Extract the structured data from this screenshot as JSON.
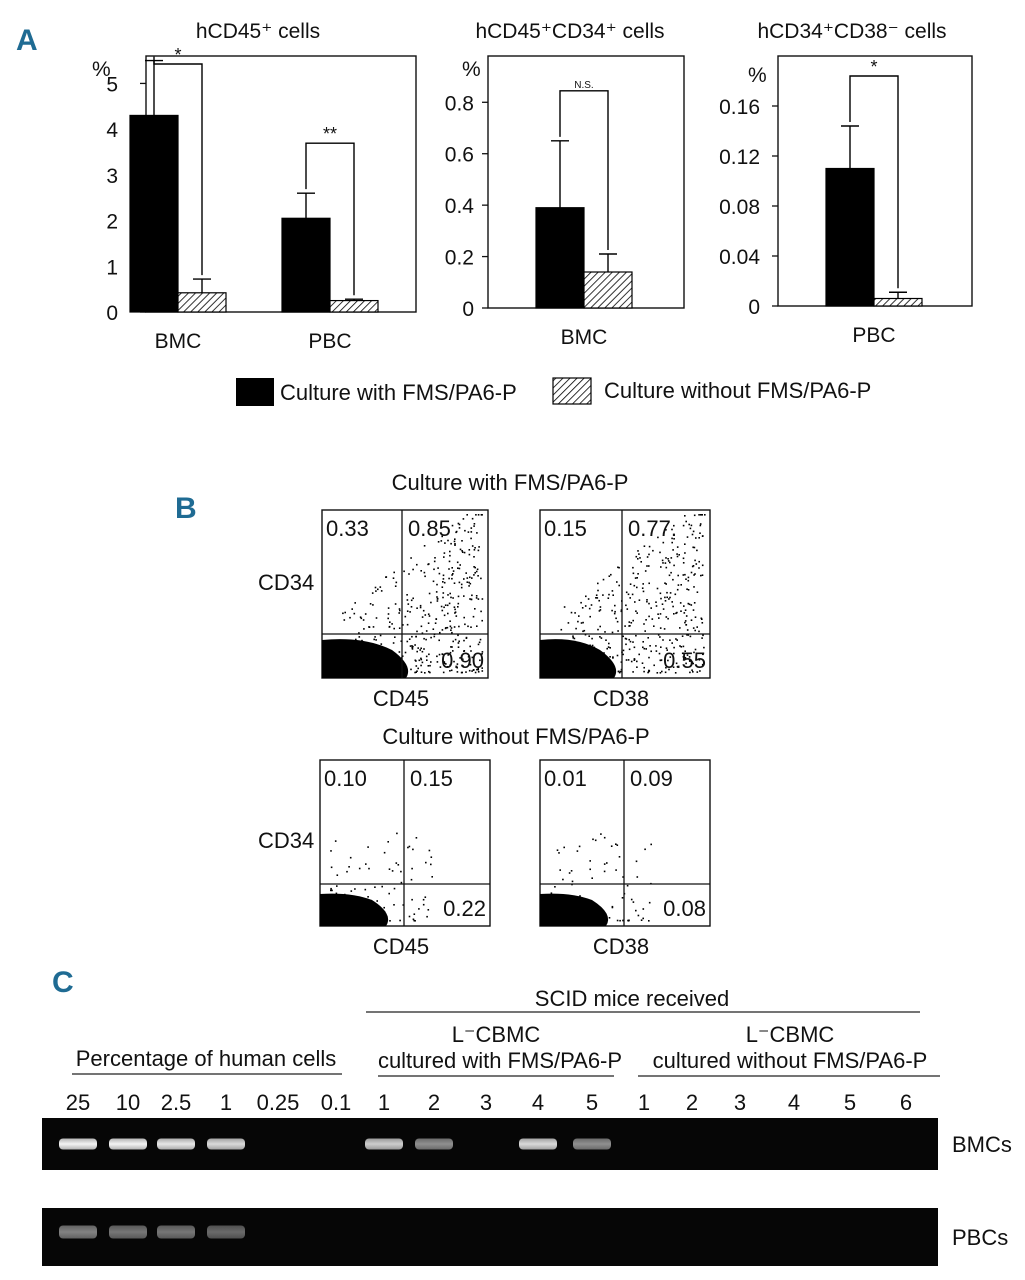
{
  "figure": {
    "panel_letters": [
      "A",
      "B",
      "C"
    ],
    "colors": {
      "panel_letter": "#1f6b93",
      "with_bar": "#000000",
      "without_bar_hatch": "#000000",
      "gel_background": "#050505",
      "band": "#f2f2f2"
    }
  },
  "legend": {
    "with_label": "Culture with FMS/PA6-P",
    "without_label": "Culture without FMS/PA6-P"
  },
  "chart_data": [
    {
      "type": "bar",
      "title": "hCD45⁺ cells",
      "ylabel": "%",
      "ylim": [
        0,
        5.6
      ],
      "yticks": [
        0,
        1,
        2,
        3,
        4,
        5
      ],
      "ytick_labels": [
        "0",
        "1",
        "2",
        "3",
        "4",
        "5"
      ],
      "categories": [
        "BMC",
        "PBC"
      ],
      "series": [
        {
          "name": "Culture with FMS/PA6-P",
          "values": [
            4.3,
            2.05
          ],
          "errors": [
            1.2,
            0.55
          ]
        },
        {
          "name": "Culture without FMS/PA6-P",
          "values": [
            0.42,
            0.25
          ],
          "errors": [
            0.3,
            0.03
          ]
        }
      ],
      "significance": [
        {
          "category": "BMC",
          "label": "*"
        },
        {
          "category": "PBC",
          "label": "**"
        }
      ]
    },
    {
      "type": "bar",
      "title": "hCD45⁺CD34⁺ cells",
      "ylabel": "%",
      "ylim": [
        0,
        0.98
      ],
      "yticks": [
        0,
        0.2,
        0.4,
        0.6,
        0.8
      ],
      "ytick_labels": [
        "0",
        "0.2",
        "0.4",
        "0.6",
        "0.8"
      ],
      "categories": [
        "BMC"
      ],
      "series": [
        {
          "name": "Culture with FMS/PA6-P",
          "values": [
            0.39
          ],
          "errors": [
            0.26
          ]
        },
        {
          "name": "Culture without FMS/PA6-P",
          "values": [
            0.14
          ],
          "errors": [
            0.07
          ]
        }
      ],
      "significance": [
        {
          "category": "BMC",
          "label": "N.S."
        }
      ]
    },
    {
      "type": "bar",
      "title": "hCD34⁺CD38⁻ cells",
      "ylabel": "%",
      "ylim": [
        0,
        0.2
      ],
      "yticks": [
        0,
        0.04,
        0.08,
        0.12,
        0.16
      ],
      "ytick_labels": [
        "0",
        "0.04",
        "0.08",
        "0.12",
        "0.16"
      ],
      "categories": [
        "PBC"
      ],
      "series": [
        {
          "name": "Culture with FMS/PA6-P",
          "values": [
            0.11
          ],
          "errors": [
            0.034
          ]
        },
        {
          "name": "Culture without FMS/PA6-P",
          "values": [
            0.006
          ],
          "errors": [
            0.005
          ]
        }
      ],
      "significance": [
        {
          "category": "PBC",
          "label": "*"
        }
      ]
    }
  ],
  "flow": {
    "with_title": "Culture with FMS/PA6-P",
    "without_title": "Culture without FMS/PA6-P",
    "ylabel": "CD34",
    "plots": [
      {
        "xlabel": "CD45",
        "ul": "0.33",
        "ur": "0.85",
        "lr": "0.90",
        "density": "high"
      },
      {
        "xlabel": "CD38",
        "ul": "0.15",
        "ur": "0.77.",
        "lr": "0.55",
        "density": "high"
      },
      {
        "xlabel": "CD45",
        "ul": "0.10",
        "ur": "0.15",
        "lr": "0.22",
        "density": "low"
      },
      {
        "xlabel": "CD38",
        "ul": "0.01",
        "ur": "0.09",
        "lr": "0.08",
        "density": "low"
      }
    ]
  },
  "gel": {
    "scid_header": "SCID mice received",
    "percentage_header": "Percentage of human cells",
    "group_with_line1": "L⁻CBMC",
    "group_with_line2": "cultured with FMS/PA6-P",
    "group_without_line1": "L⁻CBMC",
    "group_without_line2": "cultured without FMS/PA6-P",
    "lane_labels": [
      "25",
      "10",
      "2.5",
      "1",
      "0.25",
      "0.1",
      "1",
      "2",
      "3",
      "4",
      "5",
      "1",
      "2",
      "3",
      "4",
      "5",
      "6"
    ],
    "rows": [
      {
        "label": "BMCs",
        "bands": [
          0.95,
          0.95,
          0.9,
          0.85,
          0,
          0,
          0.8,
          0.55,
          0,
          0.85,
          0.55,
          0,
          0,
          0,
          0,
          0,
          0
        ]
      },
      {
        "label": "PBCs",
        "bands": [
          0.5,
          0.45,
          0.45,
          0.4,
          0,
          0,
          0,
          0,
          0,
          0,
          0,
          0,
          0,
          0,
          0,
          0,
          0
        ]
      }
    ]
  }
}
